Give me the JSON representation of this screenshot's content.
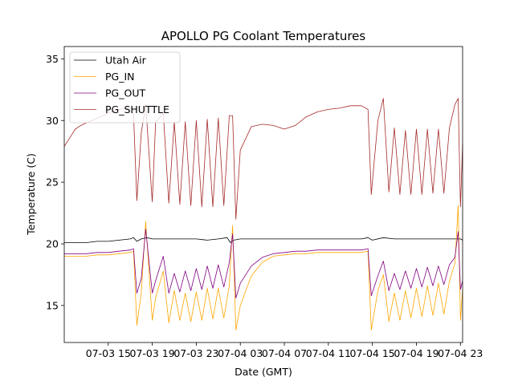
{
  "chart_data": {
    "type": "line",
    "title": "APOLLO PG Coolant Temperatures",
    "xlabel": "Date (GMT)",
    "ylabel": "Temperature (C)",
    "x_units": "hours since 07-03 00:00 GMT",
    "xlim": [
      11.0,
      47.2
    ],
    "ylim": [
      12.0,
      36.0
    ],
    "x_ticks": [
      {
        "value": 15,
        "label": "07-03 15"
      },
      {
        "value": 19,
        "label": "07-03 19"
      },
      {
        "value": 23,
        "label": "07-03 23"
      },
      {
        "value": 27,
        "label": "07-04 03"
      },
      {
        "value": 31,
        "label": "07-04 07"
      },
      {
        "value": 35,
        "label": "07-04 11"
      },
      {
        "value": 39,
        "label": "07-04 15"
      },
      {
        "value": 43,
        "label": "07-04 19"
      },
      {
        "value": 47,
        "label": "07-04 23"
      }
    ],
    "y_ticks": [
      {
        "value": 15,
        "label": "15"
      },
      {
        "value": 20,
        "label": "20"
      },
      {
        "value": 25,
        "label": "25"
      },
      {
        "value": 30,
        "label": "30"
      },
      {
        "value": 35,
        "label": "35"
      }
    ],
    "legend_position": "top-left",
    "series": [
      {
        "name": "Utah Air",
        "color": "#000000",
        "x": [
          11.0,
          12.0,
          13.0,
          14.0,
          15.0,
          16.0,
          17.0,
          17.3,
          17.6,
          18.0,
          18.5,
          19.0,
          20.0,
          21.0,
          22.0,
          23.0,
          24.0,
          25.0,
          25.8,
          26.1,
          26.4,
          27.0,
          28.0,
          29.0,
          30.0,
          31.0,
          32.0,
          33.0,
          34.0,
          35.0,
          36.0,
          37.0,
          38.0,
          38.6,
          39.0,
          40.0,
          41.0,
          42.0,
          43.0,
          44.0,
          45.0,
          46.0,
          47.0,
          47.2
        ],
        "y": [
          20.1,
          20.1,
          20.1,
          20.2,
          20.2,
          20.3,
          20.4,
          20.5,
          20.2,
          20.4,
          20.5,
          20.4,
          20.4,
          20.4,
          20.4,
          20.4,
          20.3,
          20.4,
          20.5,
          20.1,
          20.3,
          20.4,
          20.4,
          20.4,
          20.4,
          20.4,
          20.4,
          20.4,
          20.4,
          20.4,
          20.4,
          20.4,
          20.4,
          20.5,
          20.3,
          20.5,
          20.4,
          20.4,
          20.4,
          20.4,
          20.4,
          20.4,
          20.4,
          20.3
        ]
      },
      {
        "name": "PG_IN",
        "color": "#ffa500",
        "x": [
          11.0,
          12.0,
          13.0,
          14.0,
          15.0,
          16.0,
          17.0,
          17.3,
          17.6,
          18.0,
          18.4,
          19.0,
          19.3,
          20.0,
          20.5,
          21.0,
          21.5,
          22.0,
          22.5,
          23.0,
          23.5,
          24.0,
          24.5,
          25.0,
          25.5,
          26.0,
          26.3,
          26.6,
          27.0,
          28.0,
          29.0,
          30.0,
          31.0,
          32.0,
          33.0,
          34.0,
          35.0,
          36.0,
          37.0,
          38.0,
          38.6,
          38.9,
          39.5,
          40.0,
          40.5,
          41.0,
          41.5,
          42.0,
          42.5,
          43.0,
          43.5,
          44.0,
          44.5,
          45.0,
          45.5,
          46.0,
          46.5,
          46.8,
          47.0,
          47.2
        ],
        "y": [
          19.0,
          19.0,
          19.0,
          19.1,
          19.1,
          19.2,
          19.3,
          19.4,
          13.4,
          16.0,
          21.8,
          13.8,
          15.6,
          17.8,
          13.6,
          16.2,
          13.8,
          16.0,
          13.7,
          16.1,
          13.8,
          16.4,
          13.9,
          16.4,
          14.0,
          16.6,
          21.5,
          13.0,
          15.0,
          17.4,
          18.5,
          19.0,
          19.1,
          19.2,
          19.2,
          19.3,
          19.3,
          19.3,
          19.3,
          19.3,
          19.4,
          13.0,
          16.2,
          17.5,
          13.7,
          16.0,
          13.8,
          16.2,
          14.0,
          16.4,
          14.1,
          16.6,
          14.2,
          16.8,
          14.3,
          17.0,
          18.4,
          23.1,
          13.8,
          16.3
        ]
      },
      {
        "name": "PG_OUT",
        "color": "#800080",
        "x": [
          11.0,
          12.0,
          13.0,
          14.0,
          15.0,
          16.0,
          17.0,
          17.3,
          17.6,
          18.0,
          18.4,
          19.0,
          19.3,
          20.0,
          20.5,
          21.0,
          21.5,
          22.0,
          22.5,
          23.0,
          23.5,
          24.0,
          24.5,
          25.0,
          25.5,
          26.0,
          26.3,
          26.6,
          27.0,
          28.0,
          29.0,
          30.0,
          31.0,
          32.0,
          33.0,
          34.0,
          35.0,
          36.0,
          37.0,
          38.0,
          38.6,
          38.9,
          39.5,
          40.0,
          40.5,
          41.0,
          41.5,
          42.0,
          42.5,
          43.0,
          43.5,
          44.0,
          44.5,
          45.0,
          45.5,
          46.0,
          46.5,
          46.8,
          47.0,
          47.2
        ],
        "y": [
          19.2,
          19.2,
          19.2,
          19.3,
          19.3,
          19.4,
          19.5,
          19.6,
          16.0,
          17.2,
          21.2,
          16.0,
          17.0,
          19.0,
          16.0,
          17.6,
          16.1,
          17.8,
          16.2,
          18.0,
          16.3,
          18.2,
          16.4,
          18.3,
          16.5,
          18.5,
          20.8,
          15.6,
          16.8,
          18.2,
          18.9,
          19.2,
          19.3,
          19.4,
          19.4,
          19.5,
          19.5,
          19.5,
          19.5,
          19.5,
          19.6,
          15.8,
          17.4,
          18.6,
          16.2,
          17.6,
          16.3,
          17.8,
          16.4,
          18.0,
          16.5,
          18.1,
          16.6,
          18.2,
          16.7,
          18.3,
          18.9,
          21.0,
          16.3,
          17.0
        ]
      },
      {
        "name": "PG_SHUTTLE",
        "color": "#a52a2a",
        "x": [
          11.0,
          11.5,
          12.0,
          12.5,
          13.0,
          14.0,
          15.0,
          16.0,
          17.0,
          17.3,
          17.6,
          18.0,
          18.4,
          19.0,
          19.3,
          20.0,
          20.5,
          21.0,
          21.5,
          22.0,
          22.5,
          23.0,
          23.5,
          24.0,
          24.5,
          25.0,
          25.5,
          26.0,
          26.3,
          26.6,
          27.0,
          28.0,
          29.0,
          30.0,
          31.0,
          32.0,
          33.0,
          34.0,
          35.0,
          36.0,
          37.0,
          38.0,
          38.6,
          38.9,
          39.5,
          40.0,
          40.5,
          41.0,
          41.5,
          42.0,
          42.5,
          43.0,
          43.5,
          44.0,
          44.5,
          45.0,
          45.5,
          46.0,
          46.5,
          46.8,
          47.0,
          47.2
        ],
        "y": [
          27.9,
          28.6,
          29.3,
          29.6,
          29.8,
          30.2,
          30.6,
          30.9,
          31.0,
          30.5,
          23.5,
          29.0,
          31.3,
          23.4,
          29.8,
          30.6,
          23.3,
          29.9,
          23.2,
          29.9,
          23.1,
          30.0,
          23.0,
          30.1,
          23.0,
          30.2,
          23.1,
          30.4,
          30.4,
          22.0,
          27.6,
          29.5,
          29.7,
          29.6,
          29.3,
          29.6,
          30.3,
          30.7,
          30.9,
          31.0,
          31.2,
          31.2,
          30.9,
          24.0,
          30.0,
          31.8,
          24.2,
          29.4,
          24.0,
          29.2,
          24.0,
          29.3,
          24.0,
          29.3,
          24.1,
          29.3,
          24.1,
          29.4,
          31.3,
          31.8,
          23.0,
          28.1
        ]
      }
    ]
  }
}
